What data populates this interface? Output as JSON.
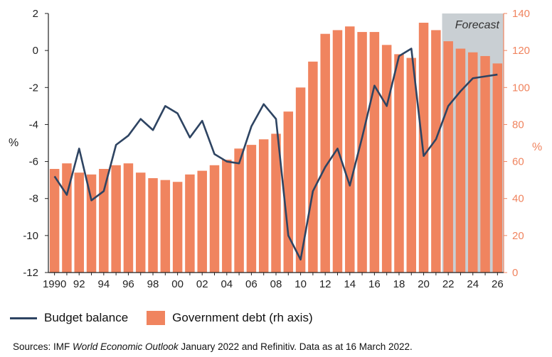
{
  "chart_data": {
    "type": "bar+line",
    "x": [
      1990,
      1991,
      1992,
      1993,
      1994,
      1995,
      1996,
      1997,
      1998,
      1999,
      2000,
      2001,
      2002,
      2003,
      2004,
      2005,
      2006,
      2007,
      2008,
      2009,
      2010,
      2011,
      2012,
      2013,
      2014,
      2015,
      2016,
      2017,
      2018,
      2019,
      2020,
      2021,
      2022,
      2023,
      2024,
      2025,
      2026
    ],
    "tick_labels": [
      "1990",
      "92",
      "94",
      "96",
      "98",
      "00",
      "02",
      "04",
      "06",
      "08",
      "10",
      "12",
      "14",
      "16",
      "18",
      "20",
      "22",
      "24",
      "26"
    ],
    "series": [
      {
        "name": "Budget balance",
        "kind": "line",
        "axis": "left",
        "color": "#2e4462",
        "values": [
          -6.8,
          -7.8,
          -5.3,
          -8.1,
          -7.6,
          -5.1,
          -4.6,
          -3.7,
          -4.3,
          -3.0,
          -3.4,
          -4.7,
          -3.8,
          -5.6,
          -6.0,
          -6.1,
          -4.1,
          -2.9,
          -3.7,
          -10.0,
          -11.3,
          -7.6,
          -6.3,
          -5.3,
          -7.3,
          -4.7,
          -1.9,
          -3.0,
          -0.3,
          0.1,
          -5.7,
          -4.8,
          -3.0,
          -2.2,
          -1.5,
          -1.4,
          -1.3
        ]
      },
      {
        "name": "Government debt (rh axis)",
        "kind": "bar",
        "axis": "right",
        "color": "#f0845f",
        "values": [
          56,
          59,
          54,
          53,
          56,
          58,
          59,
          54,
          51,
          50,
          49,
          53,
          55,
          58,
          61,
          67,
          69,
          72,
          75,
          87,
          100,
          114,
          129,
          131,
          133,
          130,
          130,
          123,
          118,
          116,
          135,
          131,
          125,
          121,
          119,
          117,
          113
        ]
      }
    ],
    "y_left": {
      "label": "%",
      "ylim": [
        -12,
        2
      ],
      "ticks": [
        "-12",
        "-10",
        "-8",
        "-6",
        "-4",
        "-2",
        "0",
        "2"
      ]
    },
    "y_right": {
      "label": "%",
      "ylim": [
        0,
        140
      ],
      "ticks": [
        "0",
        "20",
        "40",
        "60",
        "80",
        "100",
        "120",
        "140"
      ]
    },
    "forecast": {
      "label": "Forecast",
      "start": 2022,
      "end": 2026
    },
    "legend": [
      "Budget balance",
      "Government debt (rh axis)"
    ]
  },
  "source": {
    "prefix": "Sources: IMF ",
    "publication": "World Economic Outlook",
    "suffix": " January 2022 and Refinitiv. Data as at 16 March 2022."
  },
  "colors": {
    "line": "#2e4462",
    "bar": "#f0845f",
    "forecast_shade": "#c9cfd3",
    "axis": "#222222"
  }
}
